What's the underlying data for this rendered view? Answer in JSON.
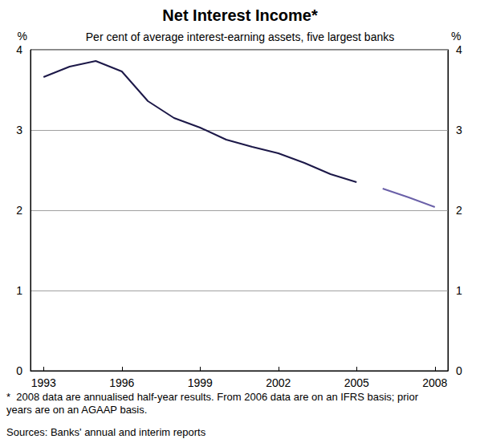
{
  "chart_data": {
    "type": "line",
    "title": "Net Interest Income*",
    "subtitle": "Per cent of average interest-earning assets, five largest banks",
    "y_label": "%",
    "y2_label": "%",
    "notes": [
      "*  2008 data are annualised half-year results. From 2006 data are on an IFRS basis; prior years are on an AGAAP basis.",
      "Sources: Banks' annual and interim reports"
    ],
    "x": [
      1993,
      1994,
      1995,
      1996,
      1997,
      1998,
      1999,
      2000,
      2001,
      2002,
      2003,
      2004,
      2005,
      2006,
      2007,
      2008
    ],
    "series": [
      {
        "color": "#1c1848",
        "values": [
          3.66,
          3.79,
          3.86,
          3.73,
          3.36,
          3.15,
          3.03,
          2.88,
          2.79,
          2.71,
          2.59,
          2.45,
          2.35,
          null,
          null,
          null
        ]
      },
      {
        "color": "#6a60a8",
        "values": [
          null,
          null,
          null,
          null,
          null,
          null,
          null,
          null,
          null,
          null,
          null,
          null,
          null,
          2.27,
          2.16,
          2.04
        ]
      }
    ],
    "xlim": [
      1992.5,
      2008.5
    ],
    "xticks": [
      1993,
      1996,
      1999,
      2002,
      2005,
      2008
    ],
    "ylim": [
      0,
      4
    ],
    "yticks": [
      0,
      1,
      2,
      3,
      4
    ],
    "y2lim": [
      0,
      4
    ],
    "y2ticks": [
      0,
      1,
      2,
      3,
      4
    ],
    "grid": true
  }
}
